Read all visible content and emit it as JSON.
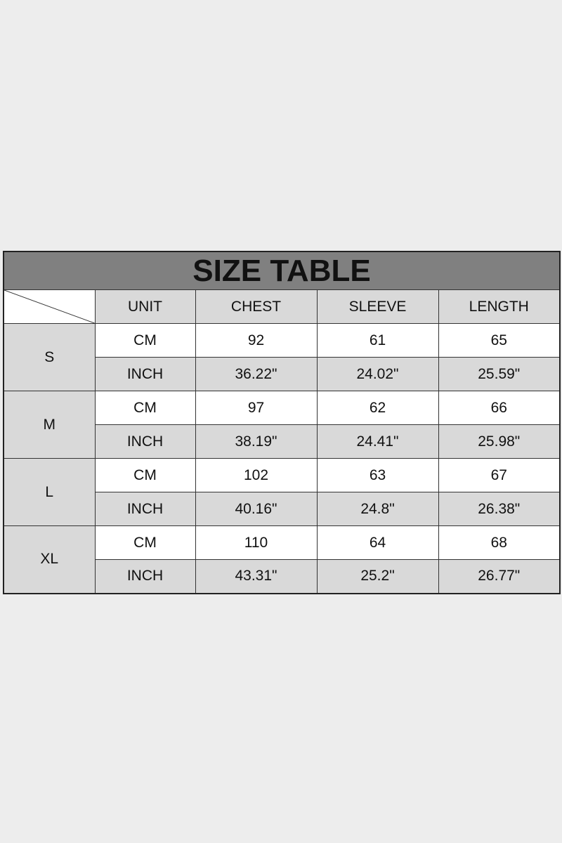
{
  "title": "SIZE TABLE",
  "headers": [
    "UNIT",
    "CHEST",
    "SLEEVE",
    "LENGTH"
  ],
  "sizes": [
    {
      "size": "S",
      "cm": {
        "unit": "CM",
        "chest": "92",
        "sleeve": "61",
        "length": "65"
      },
      "inch": {
        "unit": "INCH",
        "chest": "36.22\"",
        "sleeve": "24.02\"",
        "length": "25.59\""
      }
    },
    {
      "size": "M",
      "cm": {
        "unit": "CM",
        "chest": "97",
        "sleeve": "62",
        "length": "66"
      },
      "inch": {
        "unit": "INCH",
        "chest": "38.19\"",
        "sleeve": "24.41\"",
        "length": "25.98\""
      }
    },
    {
      "size": "L",
      "cm": {
        "unit": "CM",
        "chest": "102",
        "sleeve": "63",
        "length": "67"
      },
      "inch": {
        "unit": "INCH",
        "chest": "40.16\"",
        "sleeve": "24.8\"",
        "length": "26.38\""
      }
    },
    {
      "size": "XL",
      "cm": {
        "unit": "CM",
        "chest": "110",
        "sleeve": "64",
        "length": "68"
      },
      "inch": {
        "unit": "INCH",
        "chest": "43.31\"",
        "sleeve": "25.2\"",
        "length": "26.77\""
      }
    }
  ],
  "colors": {
    "title_bg": "#808080",
    "grey_cell": "#d9d9d9",
    "background": "#ededed"
  }
}
